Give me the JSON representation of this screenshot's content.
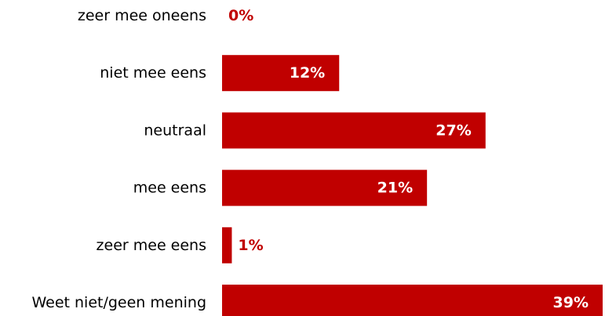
{
  "chart_data": {
    "type": "bar",
    "orientation": "horizontal",
    "title": "",
    "xlabel": "",
    "ylabel": "",
    "categories": [
      "zeer mee oneens",
      "niet mee eens",
      "neutraal",
      "mee eens",
      "zeer mee eens",
      "Weet niet/geen mening"
    ],
    "values": [
      0,
      12,
      27,
      21,
      1,
      39
    ],
    "value_labels": [
      "0%",
      "12%",
      "27%",
      "21%",
      "1%",
      "39%"
    ],
    "xlim": [
      0,
      39
    ],
    "grid": false,
    "legend": "none",
    "colors": {
      "bar": "#c00000",
      "label_inside": "#ffffff",
      "label_outside": "#c00000",
      "category_text": "#000000"
    }
  }
}
